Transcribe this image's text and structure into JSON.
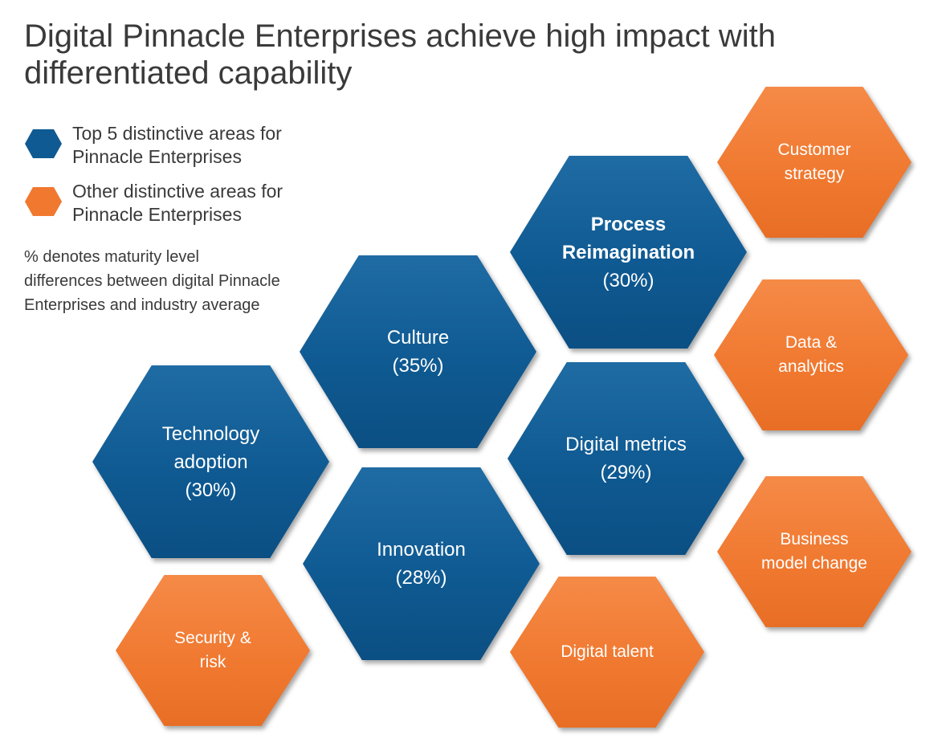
{
  "title": {
    "line1": "Digital Pinnacle Enterprises achieve high impact with",
    "line2": "differentiated capability"
  },
  "legend": {
    "top": {
      "line1": "Top 5 distinctive areas for",
      "line2": "Pinnacle Enterprises",
      "color": "#0f5a92"
    },
    "other": {
      "line1": "Other distinctive areas for",
      "line2": "Pinnacle Enterprises",
      "color": "#f0782f"
    }
  },
  "note": {
    "line1": "% denotes maturity level",
    "line2": "differences between digital Pinnacle",
    "line3": "Enterprises and industry average"
  },
  "top_areas": [
    {
      "name": "Process",
      "name2": "Reimagination",
      "pct": "(30%)"
    },
    {
      "name": "Culture",
      "pct": "(35%)"
    },
    {
      "name": "Technology",
      "name2": "adoption",
      "pct": "(30%)"
    },
    {
      "name": "Digital metrics",
      "pct": "(29%)"
    },
    {
      "name": "Innovation",
      "pct": "(28%)"
    }
  ],
  "other_areas": [
    {
      "line1": "Customer",
      "line2": "strategy"
    },
    {
      "line1": "Data &",
      "line2": "analytics"
    },
    {
      "line1": "Business",
      "line2": "model change"
    },
    {
      "line1": "Digital talent"
    },
    {
      "line1": "Security &",
      "line2": "risk"
    }
  ]
}
